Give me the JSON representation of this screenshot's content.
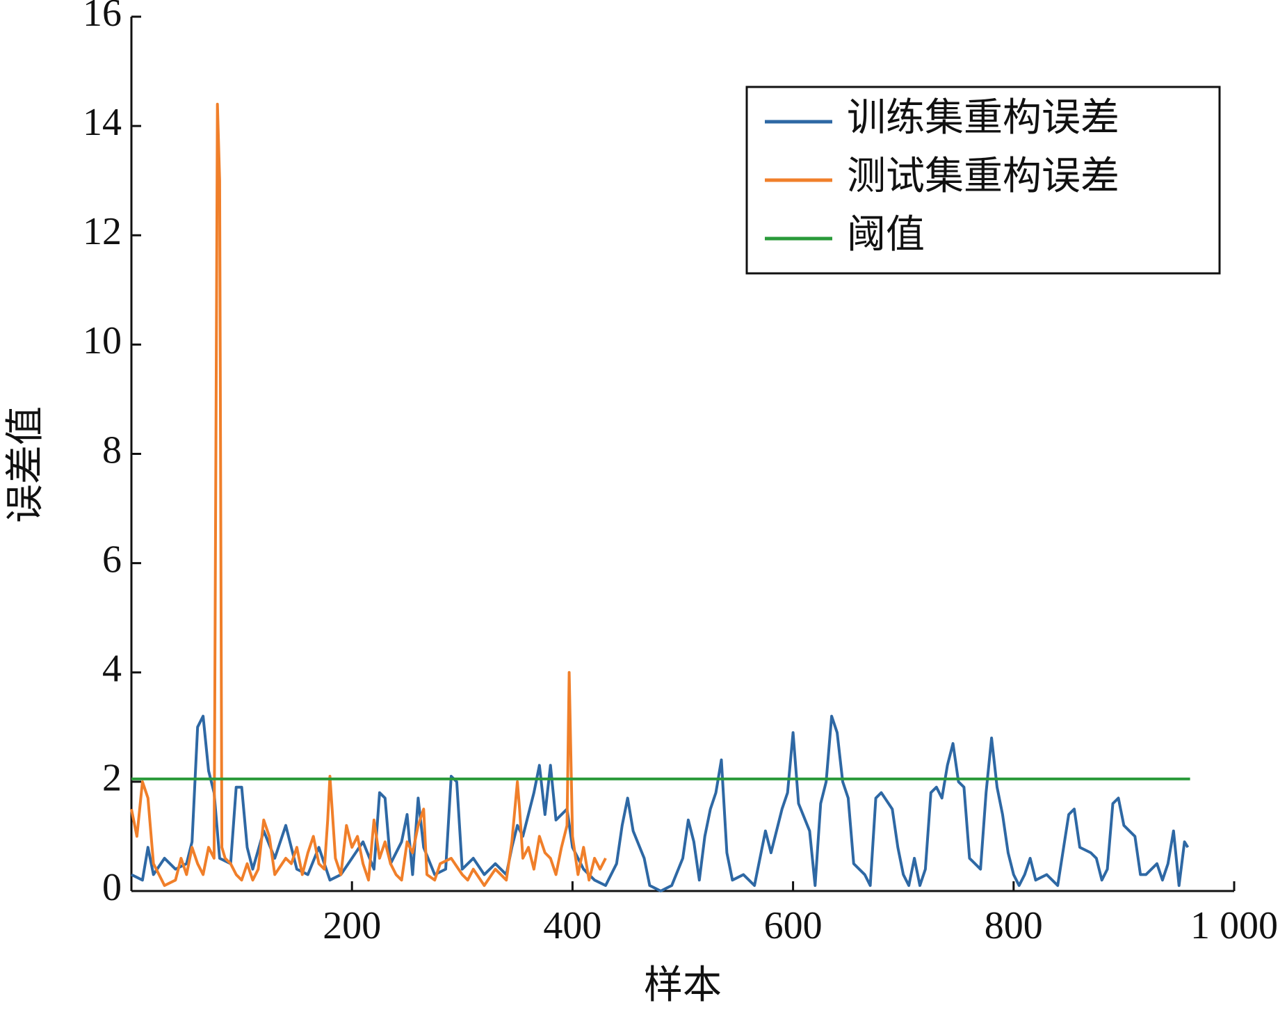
{
  "chart_data": {
    "type": "line",
    "xlabel": "样本",
    "ylabel": "误差值",
    "xlim": [
      0,
      1000
    ],
    "ylim": [
      0,
      16
    ],
    "xticks": [
      200,
      400,
      600,
      800,
      {
        "value": 1000,
        "label": "1 000"
      }
    ],
    "yticks": [
      0,
      2,
      4,
      6,
      8,
      10,
      12,
      14,
      16
    ],
    "legend": "upper right",
    "series": [
      {
        "name": "训练集重构误差",
        "color": "#2e68a4",
        "x": [
          0,
          10,
          15,
          20,
          30,
          40,
          50,
          55,
          60,
          65,
          70,
          75,
          80,
          90,
          95,
          100,
          105,
          110,
          120,
          130,
          140,
          150,
          160,
          170,
          180,
          190,
          200,
          210,
          220,
          225,
          230,
          235,
          245,
          250,
          255,
          260,
          265,
          275,
          285,
          290,
          295,
          300,
          310,
          320,
          330,
          340,
          345,
          350,
          355,
          365,
          370,
          375,
          380,
          385,
          395,
          400,
          410,
          420,
          430,
          440,
          445,
          450,
          455,
          465,
          470,
          480,
          490,
          500,
          505,
          510,
          515,
          520,
          525,
          530,
          535,
          540,
          545,
          555,
          565,
          575,
          580,
          590,
          595,
          600,
          605,
          615,
          620,
          625,
          630,
          635,
          640,
          645,
          650,
          655,
          665,
          670,
          675,
          680,
          690,
          695,
          700,
          705,
          710,
          715,
          720,
          725,
          730,
          735,
          740,
          745,
          750,
          755,
          760,
          770,
          775,
          780,
          785,
          790,
          795,
          800,
          805,
          810,
          815,
          820,
          830,
          840,
          850,
          855,
          860,
          870,
          875,
          880,
          885,
          890,
          895,
          900,
          905,
          910,
          915,
          920,
          930,
          935,
          940,
          945,
          950,
          955,
          958
        ],
        "values": [
          0.3,
          0.2,
          0.8,
          0.3,
          0.6,
          0.4,
          0.5,
          0.9,
          3.0,
          3.2,
          2.2,
          1.8,
          0.6,
          0.5,
          1.9,
          1.9,
          0.8,
          0.4,
          1.1,
          0.6,
          1.2,
          0.4,
          0.3,
          0.8,
          0.2,
          0.3,
          0.6,
          0.9,
          0.4,
          1.8,
          1.7,
          0.5,
          0.9,
          1.4,
          0.3,
          1.7,
          0.8,
          0.3,
          0.4,
          2.1,
          2.0,
          0.4,
          0.6,
          0.3,
          0.5,
          0.3,
          0.8,
          1.2,
          1.0,
          1.8,
          2.3,
          1.4,
          2.3,
          1.3,
          1.5,
          0.8,
          0.4,
          0.2,
          0.1,
          0.5,
          1.2,
          1.7,
          1.1,
          0.6,
          0.1,
          0.0,
          0.1,
          0.6,
          1.3,
          0.9,
          0.2,
          1.0,
          1.5,
          1.8,
          2.4,
          0.7,
          0.2,
          0.3,
          0.1,
          1.1,
          0.7,
          1.5,
          1.8,
          2.9,
          1.6,
          1.1,
          0.1,
          1.6,
          2.0,
          3.2,
          2.9,
          2.0,
          1.7,
          0.5,
          0.3,
          0.1,
          1.7,
          1.8,
          1.5,
          0.8,
          0.3,
          0.1,
          0.6,
          0.1,
          0.4,
          1.8,
          1.9,
          1.7,
          2.3,
          2.7,
          2.0,
          1.9,
          0.6,
          0.4,
          1.8,
          2.8,
          1.9,
          1.4,
          0.7,
          0.3,
          0.1,
          0.3,
          0.6,
          0.2,
          0.3,
          0.1,
          1.4,
          1.5,
          0.8,
          0.7,
          0.6,
          0.2,
          0.4,
          1.6,
          1.7,
          1.2,
          1.1,
          1.0,
          0.3,
          0.3,
          0.5,
          0.2,
          0.5,
          1.1,
          0.1,
          0.9,
          0.8
        ]
      },
      {
        "name": "测试集重构误差",
        "color": "#f07f2a",
        "x": [
          0,
          5,
          10,
          15,
          20,
          25,
          30,
          40,
          45,
          50,
          55,
          60,
          65,
          70,
          75,
          78,
          80,
          82,
          85,
          90,
          95,
          100,
          105,
          110,
          115,
          120,
          125,
          130,
          140,
          145,
          150,
          155,
          160,
          165,
          170,
          175,
          178,
          180,
          182,
          185,
          190,
          195,
          200,
          205,
          210,
          215,
          220,
          225,
          230,
          235,
          240,
          245,
          250,
          255,
          260,
          265,
          268,
          275,
          280,
          290,
          300,
          305,
          310,
          320,
          330,
          340,
          345,
          350,
          352,
          355,
          360,
          365,
          370,
          375,
          380,
          385,
          390,
          395,
          397,
          400,
          405,
          410,
          415,
          420,
          425,
          430
        ],
        "values": [
          1.5,
          1.0,
          2.0,
          1.7,
          0.5,
          0.3,
          0.1,
          0.2,
          0.6,
          0.3,
          0.8,
          0.5,
          0.3,
          0.8,
          0.6,
          14.4,
          13.0,
          0.8,
          0.6,
          0.5,
          0.3,
          0.2,
          0.5,
          0.2,
          0.4,
          1.3,
          1.0,
          0.3,
          0.6,
          0.5,
          0.8,
          0.3,
          0.7,
          1.0,
          0.5,
          0.4,
          1.3,
          2.1,
          1.5,
          0.6,
          0.3,
          1.2,
          0.8,
          1.0,
          0.5,
          0.2,
          1.3,
          0.6,
          0.9,
          0.5,
          0.3,
          0.2,
          0.9,
          0.7,
          1.2,
          1.5,
          0.3,
          0.2,
          0.5,
          0.6,
          0.3,
          0.2,
          0.4,
          0.1,
          0.4,
          0.2,
          0.9,
          2.0,
          1.5,
          0.6,
          0.8,
          0.4,
          1.0,
          0.7,
          0.6,
          0.3,
          0.8,
          1.2,
          4.0,
          1.0,
          0.3,
          0.8,
          0.2,
          0.6,
          0.4,
          0.6
        ]
      },
      {
        "name": "阈值",
        "color": "#2a9a3a",
        "x": [
          0,
          960
        ],
        "values": [
          2.05,
          2.05
        ]
      }
    ]
  }
}
